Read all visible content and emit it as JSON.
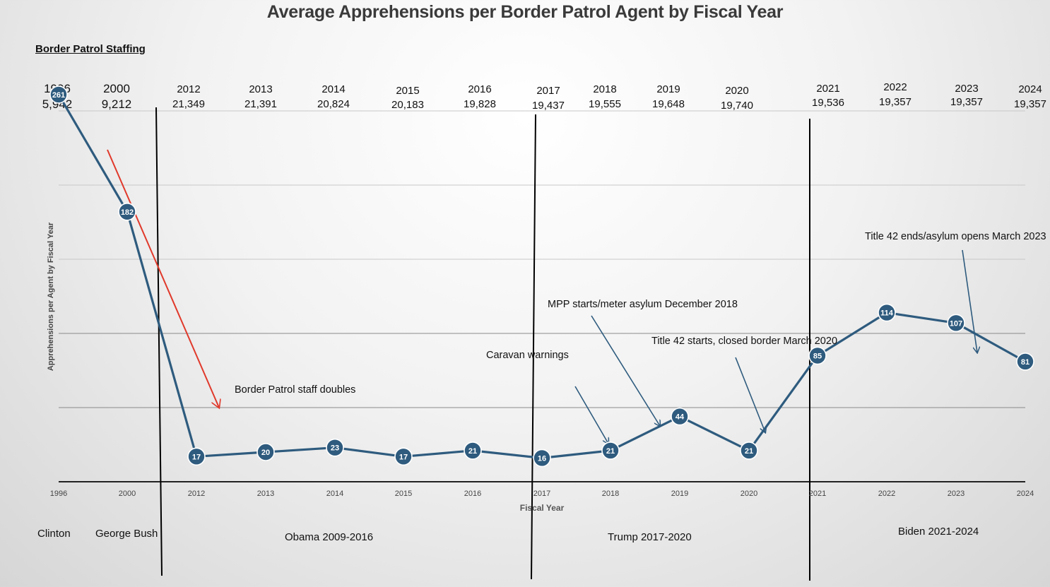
{
  "chart_data": {
    "type": "line",
    "title": "Average Apprehensions per Border Patrol Agent by Fiscal Year",
    "xlabel": "Fiscal Year",
    "ylabel": "Apprehensions per Agent by Fiscal Year",
    "categories": [
      "1996",
      "2000",
      "2012",
      "2013",
      "2014",
      "2015",
      "2016",
      "2017",
      "2018",
      "2019",
      "2020",
      "2021",
      "2022",
      "2023",
      "2024"
    ],
    "values": [
      261,
      182,
      17,
      20,
      23,
      17,
      21,
      16,
      21,
      44,
      21,
      85,
      114,
      107,
      81
    ],
    "ylim": [
      0,
      300
    ],
    "grid": true,
    "series_color": "#2e5b7e"
  },
  "staffing": {
    "heading": "Border Patrol Staffing",
    "entries": [
      {
        "year": "1996",
        "count": "5,942"
      },
      {
        "year": "2000",
        "count": "9,212"
      },
      {
        "year": "2012",
        "count": "21,349"
      },
      {
        "year": "2013",
        "count": "21,391"
      },
      {
        "year": "2014",
        "count": "20,824"
      },
      {
        "year": "2015",
        "count": "20,183"
      },
      {
        "year": "2016",
        "count": "19,828"
      },
      {
        "year": "2017",
        "count": "19,437"
      },
      {
        "year": "2018",
        "count": "19,555"
      },
      {
        "year": "2019",
        "count": "19,648"
      },
      {
        "year": "2020",
        "count": "19,740"
      },
      {
        "year": "2021",
        "count": "19,536"
      },
      {
        "year": "2022",
        "count": "19,357"
      },
      {
        "year": "2023",
        "count": "19,357"
      },
      {
        "year": "2024",
        "count": "19,357"
      }
    ]
  },
  "eras": {
    "clinton": "Clinton",
    "bush": "George Bush",
    "obama": "Obama 2009-2016",
    "trump": "Trump 2017-2020",
    "biden": "Biden 2021-2024"
  },
  "annotations": {
    "staff_doubles": "Border Patrol staff doubles",
    "caravan": "Caravan warnings",
    "mpp": "MPP starts/meter asylum December 2018",
    "title42_start": "Title 42 starts, closed border March 2020",
    "title42_end": "Title 42 ends/asylum opens March 2023"
  },
  "colors": {
    "line": "#2e5b7e",
    "red_arrow": "#e0392b",
    "annotation_arrow": "#2e5b7e",
    "divider": "#000000"
  }
}
